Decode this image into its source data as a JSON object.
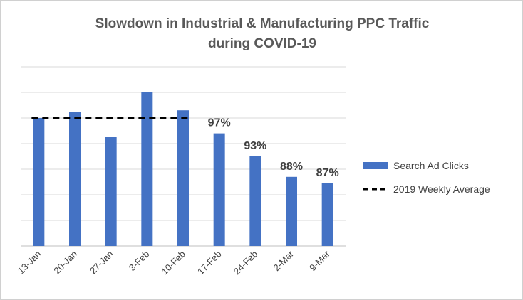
{
  "chart_data": {
    "type": "bar",
    "title_line1": "Slowdown in Industrial & Manufacturing PPC Traffic",
    "title_line2": "during COVID-19",
    "categories": [
      "13-Jan",
      "20-Jan",
      "27-Jan",
      "3-Feb",
      "10-Feb",
      "17-Feb",
      "24-Feb",
      "2-Mar",
      "9-Mar"
    ],
    "series": [
      {
        "name": "Search Ad Clicks",
        "type": "bar",
        "color": "#4472c4",
        "values": [
          5.0,
          5.25,
          4.25,
          6.0,
          5.3,
          4.4,
          3.5,
          2.7,
          2.45
        ]
      },
      {
        "name": "2019 Weekly Average",
        "type": "line",
        "style": "dashed",
        "color": "#000000",
        "value": 5.0,
        "spans_categories": [
          "13-Jan",
          "10-Feb"
        ]
      }
    ],
    "data_labels": [
      {
        "category": "17-Feb",
        "text": "97%"
      },
      {
        "category": "24-Feb",
        "text": "93%"
      },
      {
        "category": "2-Mar",
        "text": "88%"
      },
      {
        "category": "9-Mar",
        "text": "87%"
      }
    ],
    "ylim": [
      0,
      7
    ],
    "gridlines": true,
    "y_tick_labels_visible": false,
    "legend_position": "right"
  }
}
